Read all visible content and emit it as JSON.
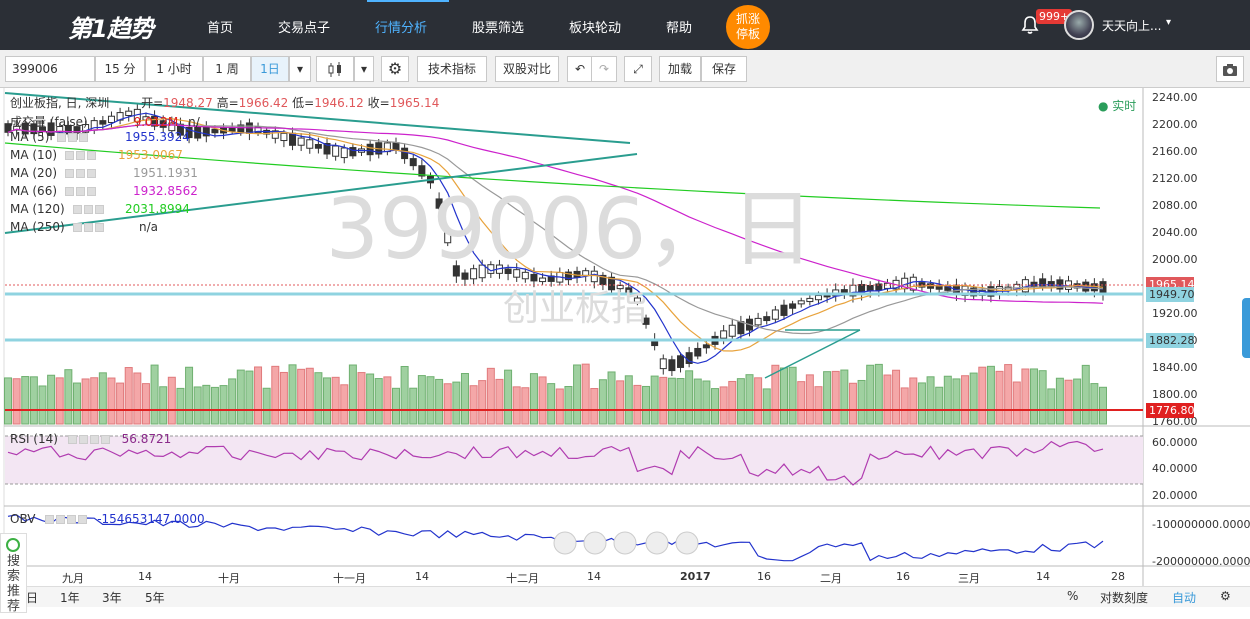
{
  "nav": {
    "logo": "第1趋势",
    "items": [
      "首页",
      "交易点子",
      "行情分析",
      "股票筛选",
      "板块轮动",
      "帮助"
    ],
    "active_index": 2,
    "promo_line1": "抓涨",
    "promo_line2": "停板",
    "badge": "999+",
    "username": "天天向上..."
  },
  "toolbar": {
    "symbol": "399006",
    "periods": [
      "15 分",
      "1 小时",
      "1 周",
      "1日"
    ],
    "active_period": "1日",
    "indicators_label": "技术指标",
    "compare_label": "双股对比",
    "load_label": "加载",
    "save_label": "保存"
  },
  "chart": {
    "watermark_code": "399006，日",
    "watermark_name": "创业板指",
    "header": {
      "title": "创业板指, 日, 深圳",
      "open_label": "开=",
      "open": "1948.27",
      "high_label": "高=",
      "high": "1966.42",
      "low_label": "低=",
      "low": "1946.12",
      "close_label": "收=",
      "close": "1965.14"
    },
    "realtime_label": "实时",
    "volume_label": "成交量 (false)",
    "volume_value": "9.012M",
    "volume_extra": "n/",
    "ma": [
      {
        "label": "MA (5)",
        "value": "1955.3924",
        "color": "#2233cc"
      },
      {
        "label": "MA (10)",
        "value": "1953.0067",
        "color": "#e8a33d"
      },
      {
        "label": "MA (20)",
        "value": "1951.1931",
        "color": "#999999"
      },
      {
        "label": "MA (66)",
        "value": "1932.8562",
        "color": "#cc22cc"
      },
      {
        "label": "MA (120)",
        "value": "2031.8994",
        "color": "#22cc22"
      },
      {
        "label": "MA (250)",
        "value": "n/a",
        "color": "#333333"
      }
    ],
    "price_axis": [
      "2240.00",
      "2200.00",
      "2160.00",
      "2120.00",
      "2080.00",
      "2040.00",
      "2000.00",
      "1920.00",
      "1880.00",
      "1840.00",
      "1800.00",
      "1760.00"
    ],
    "price_tags": [
      {
        "value": "1965.14",
        "color": "#e0585b"
      },
      {
        "value": "1949.70",
        "color": "#8fd3e0"
      },
      {
        "value": "1882.28",
        "color": "#8fd3e0"
      },
      {
        "value": "1776.80",
        "color": "#e02020"
      }
    ],
    "rsi_label": "RSI (14)",
    "rsi_value": "56.8721",
    "rsi_axis": [
      "60.0000",
      "40.0000",
      "20.0000"
    ],
    "obv_label": "OBV",
    "obv_value": "-154653147.0000",
    "obv_axis": [
      "-100000000.0000",
      "-200000000.0000"
    ],
    "x_axis": [
      "九月",
      "14",
      "十月",
      "十一月",
      "14",
      "十二月",
      "14",
      "2017",
      "16",
      "二月",
      "16",
      "三月",
      "14",
      "28"
    ]
  },
  "bottom_bar": {
    "ranges": [
      "日",
      "1年",
      "3年",
      "5年"
    ],
    "percent": "%",
    "log_scale": "对数刻度",
    "auto": "自动"
  },
  "side_search": "搜索推荐"
}
